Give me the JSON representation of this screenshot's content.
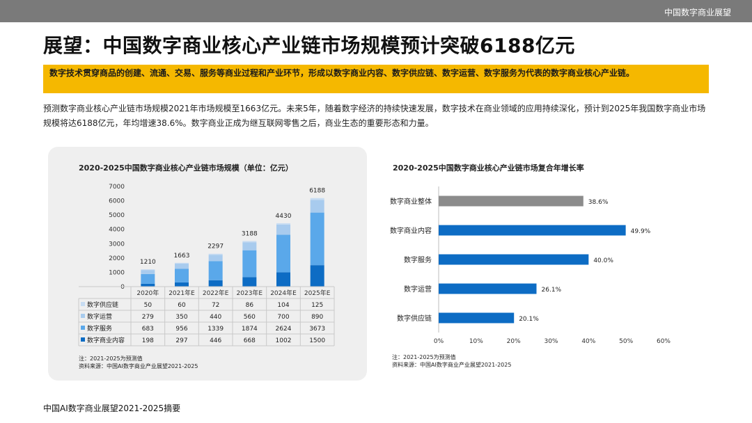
{
  "header": {
    "brand": "中国数字商业展望"
  },
  "page_title": "展望：中国数字商业核心产业链市场规模预计突破6188亿元",
  "banner": "数字技术贯穿商品的创建、流通、交易、服务等商业过程和产业环节，形成以数字商业内容、数字供应链、数字运营、数字服务为代表的数字商业核心产业链。",
  "paragraph": "预测数字商业核心产业链市场规模2021年市场规模至1663亿元。未来5年，随着数字经济的持续快速发展，数字技术在商业领域的应用持续深化，预计到2025年我国数字商业市场规模将达6188亿元，年均增速38.6%。数字商业正成为继互联网零售之后，商业生态的重要形态和力量。",
  "footer": "中国AI数字商业展望2021-2025摘要",
  "colors": {
    "supply": "#c7dcf2",
    "ops": "#a8cbee",
    "service": "#5aa8ea",
    "content": "#0d6cc4",
    "gray": "#8c8c8c",
    "hbar": "#0d6cc4"
  },
  "chart_data": [
    {
      "type": "bar",
      "stacked": true,
      "title": "2020-2025中国数字商业核心产业链市场规模（单位：亿元）",
      "categories": [
        "2020年",
        "2021年E",
        "2022年E",
        "2023年E",
        "2024年E",
        "2025年E"
      ],
      "series": [
        {
          "name": "数字商业内容",
          "color": "#0d6cc4",
          "values": [
            198,
            297,
            446,
            668,
            1002,
            1500
          ]
        },
        {
          "name": "数字服务",
          "color": "#5aa8ea",
          "values": [
            683,
            956,
            1339,
            1874,
            2624,
            3673
          ]
        },
        {
          "name": "数字运营",
          "color": "#a8cbee",
          "values": [
            279,
            350,
            440,
            560,
            700,
            890
          ]
        },
        {
          "name": "数字供应链",
          "color": "#c7dcf2",
          "values": [
            50,
            60,
            72,
            86,
            104,
            125
          ]
        }
      ],
      "totals": [
        1210,
        1663,
        2297,
        3188,
        4430,
        6188
      ],
      "table_rows": [
        "数字供应链",
        "数字运营",
        "数字服务",
        "数字商业内容"
      ],
      "yticks": [
        0,
        1000,
        2000,
        3000,
        4000,
        5000,
        6000,
        7000
      ],
      "ylim": [
        0,
        7000
      ],
      "notes": [
        "注：2021-2025为预测值",
        "资料来源：中国AI数字商业产业展望2021-2025"
      ]
    },
    {
      "type": "bar",
      "orientation": "horizontal",
      "title": "2020-2025中国数字商业核心产业链市场复合年增长率",
      "categories": [
        "数字商业整体",
        "数字商业内容",
        "数字服务",
        "数字运营",
        "数字供应链"
      ],
      "values": [
        38.6,
        49.9,
        40.0,
        26.1,
        20.1
      ],
      "labels": [
        "38.6%",
        "49.9%",
        "40.0%",
        "26.1%",
        "20.1%"
      ],
      "highlight": [
        "gray",
        "blue",
        "blue",
        "blue",
        "blue"
      ],
      "xlim": [
        0,
        60
      ],
      "xticks": [
        "0%",
        "10%",
        "20%",
        "30%",
        "40%",
        "50%",
        "60%"
      ],
      "xtick_values": [
        0,
        10,
        20,
        30,
        40,
        50,
        60
      ],
      "notes": [
        "注：2021-2025为预测值",
        "资料来源：中国AI数字商业产业展望2021-2025"
      ]
    }
  ]
}
